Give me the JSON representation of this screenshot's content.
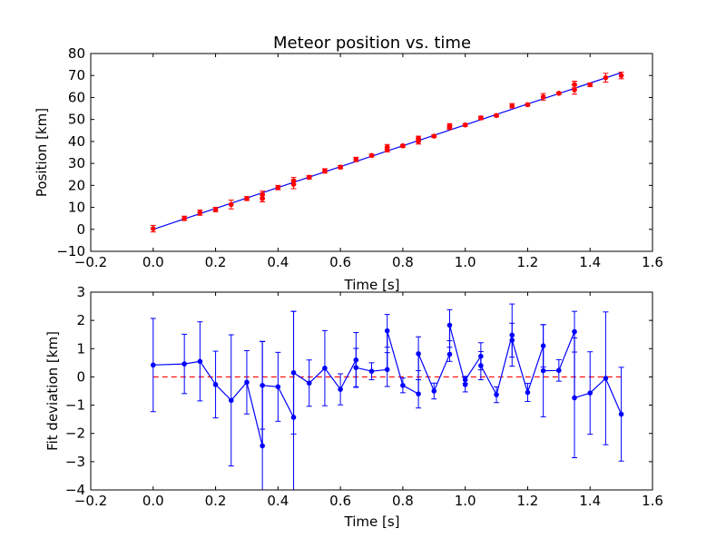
{
  "chart_data": [
    {
      "type": "scatter",
      "title": "Meteor position vs. time",
      "xlabel": "Time [s]",
      "ylabel": "Position [km]",
      "xlim": [
        -0.2,
        1.6
      ],
      "ylim": [
        -10,
        80
      ],
      "xticks": [
        "−0.2",
        "0.0",
        "0.2",
        "0.4",
        "0.6",
        "0.8",
        "1.0",
        "1.2",
        "1.4",
        "1.6"
      ],
      "yticks": [
        "−10",
        "0",
        "10",
        "20",
        "30",
        "40",
        "50",
        "60",
        "70",
        "80"
      ],
      "grid": false,
      "colors": {
        "points": "#ff0000",
        "fit_line": "#0000ff"
      },
      "series": [
        {
          "kind": "points_with_errorbars",
          "x": [
            0.0,
            0.1,
            0.15,
            0.2,
            0.25,
            0.3,
            0.35,
            0.35,
            0.4,
            0.45,
            0.45,
            0.5,
            0.55,
            0.6,
            0.65,
            0.7,
            0.75,
            0.75,
            0.8,
            0.85,
            0.85,
            0.9,
            0.95,
            0.95,
            1.0,
            1.05,
            1.1,
            1.15,
            1.2,
            1.25,
            1.3,
            1.35,
            1.35,
            1.4,
            1.45,
            1.5
          ],
          "y": [
            0.3,
            5.0,
            7.6,
            9.0,
            11.3,
            14.0,
            15.9,
            14.0,
            19.0,
            20.5,
            22.1,
            23.7,
            26.6,
            28.3,
            31.8,
            33.6,
            37.4,
            36.2,
            38.0,
            40.0,
            41.4,
            42.4,
            47.1,
            46.3,
            47.5,
            50.7,
            51.8,
            56.2,
            56.7,
            60.3,
            61.9,
            65.9,
            63.5,
            65.8,
            69.0,
            70.0
          ],
          "err": [
            1.5,
            1.0,
            1.2,
            1.0,
            2.0,
            0.9,
            1.5,
            1.5,
            1.0,
            2.0,
            1.5,
            0.8,
            1.0,
            0.7,
            1.0,
            0.6,
            1.2,
            1.0,
            0.6,
            1.2,
            1.0,
            0.6,
            1.0,
            0.8,
            0.6,
            0.8,
            0.6,
            1.0,
            0.6,
            1.5,
            0.5,
            1.5,
            2.0,
            0.8,
            2.0,
            1.5
          ]
        },
        {
          "kind": "fit_line",
          "x": [
            0.0,
            1.5
          ],
          "y": [
            0.0,
            71.3
          ]
        }
      ]
    },
    {
      "type": "line",
      "title": "",
      "xlabel": "Time [s]",
      "ylabel": "Fit deviation [km]",
      "xlim": [
        -0.2,
        1.6
      ],
      "ylim": [
        -4,
        3
      ],
      "xticks": [
        "−0.2",
        "0.0",
        "0.2",
        "0.4",
        "0.6",
        "0.8",
        "1.0",
        "1.2",
        "1.4",
        "1.6"
      ],
      "yticks": [
        "−4",
        "−3",
        "−2",
        "−1",
        "0",
        "1",
        "2",
        "3"
      ],
      "grid": false,
      "colors": {
        "series": "#0000ff",
        "zero_line": "#ff0000"
      },
      "reference_line": {
        "y": 0,
        "style": "dashed"
      },
      "series": [
        {
          "kind": "line_with_errorbars",
          "x": [
            0.0,
            0.1,
            0.15,
            0.2,
            0.25,
            0.3,
            0.35,
            0.35,
            0.4,
            0.45,
            0.45,
            0.5,
            0.55,
            0.6,
            0.65,
            0.65,
            0.7,
            0.75,
            0.75,
            0.8,
            0.85,
            0.85,
            0.9,
            0.95,
            0.95,
            1.0,
            1.0,
            1.05,
            1.05,
            1.1,
            1.15,
            1.15,
            1.2,
            1.25,
            1.25,
            1.3,
            1.35,
            1.35,
            1.4,
            1.45,
            1.5
          ],
          "y": [
            0.42,
            0.46,
            0.55,
            -0.27,
            -0.83,
            -0.19,
            -2.44,
            -0.3,
            -0.35,
            -1.43,
            0.15,
            -0.22,
            0.31,
            -0.44,
            0.6,
            0.33,
            0.2,
            0.26,
            1.63,
            -0.3,
            -0.6,
            0.82,
            -0.5,
            0.8,
            1.83,
            -0.27,
            -0.1,
            0.73,
            0.4,
            -0.63,
            1.48,
            1.3,
            -0.55,
            1.1,
            0.22,
            0.23,
            1.6,
            -0.74,
            -0.57,
            -0.05,
            -1.32
          ],
          "err": [
            1.65,
            1.05,
            1.4,
            1.18,
            2.32,
            1.12,
            3.7,
            1.55,
            1.22,
            3.75,
            2.17,
            0.82,
            1.33,
            0.55,
            0.97,
            0.68,
            0.3,
            0.6,
            0.58,
            0.26,
            0.5,
            0.6,
            0.28,
            0.25,
            0.55,
            0.26,
            0.12,
            0.48,
            0.5,
            0.28,
            1.1,
            0.6,
            0.32,
            0.75,
            1.63,
            0.38,
            0.72,
            2.12,
            1.46,
            2.35,
            1.66
          ]
        }
      ]
    }
  ]
}
